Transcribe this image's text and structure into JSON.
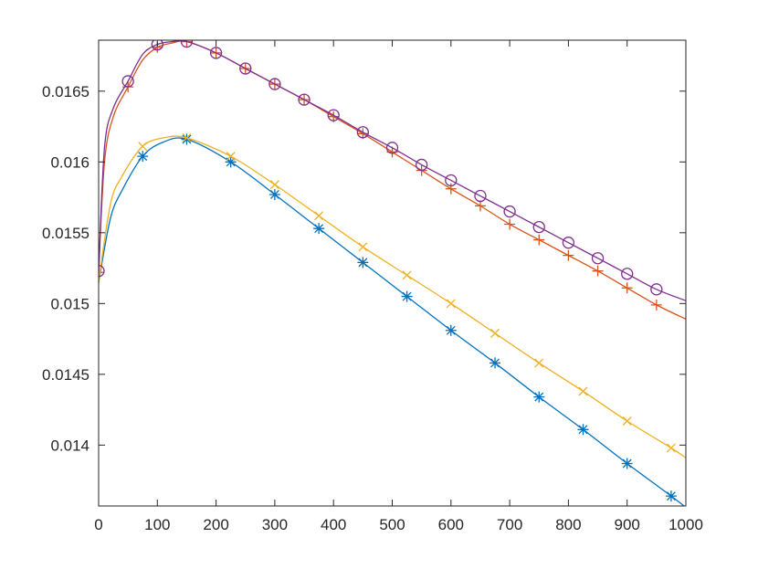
{
  "chart_data": {
    "type": "line",
    "title": "",
    "xlabel": "",
    "ylabel": "",
    "xlim": [
      0,
      1000
    ],
    "ylim": [
      0.01357,
      0.01686
    ],
    "xticks": [
      0,
      100,
      200,
      300,
      400,
      500,
      600,
      700,
      800,
      900,
      1000
    ],
    "xtick_labels": [
      "0",
      "100",
      "200",
      "300",
      "400",
      "500",
      "600",
      "700",
      "800",
      "900",
      "1000"
    ],
    "yticks": [
      0.014,
      0.0145,
      0.015,
      0.0155,
      0.016,
      0.0165
    ],
    "ytick_labels": [
      "0.014",
      "0.0145",
      "0.015",
      "0.0155",
      "0.016",
      "0.0165"
    ],
    "grid": false,
    "legend": "none",
    "series": [
      {
        "color": "#0072BD",
        "marker": "asterisk",
        "x": [
          0,
          20,
          40,
          75,
          110,
          150,
          225,
          300,
          375,
          450,
          525,
          600,
          675,
          750,
          825,
          900,
          975,
          1000
        ],
        "y": [
          0.01515,
          0.0156,
          0.0158,
          0.01604,
          0.01614,
          0.01616,
          0.016,
          0.01577,
          0.01553,
          0.01529,
          0.01505,
          0.01481,
          0.01458,
          0.01434,
          0.01411,
          0.01387,
          0.01364,
          0.01356
        ],
        "marker_x": [
          75,
          150,
          225,
          300,
          375,
          450,
          525,
          600,
          675,
          750,
          825,
          900,
          975
        ],
        "marker_y": [
          0.01604,
          0.01616,
          0.016,
          0.01577,
          0.01553,
          0.01529,
          0.01505,
          0.01481,
          0.01458,
          0.01434,
          0.01411,
          0.01387,
          0.01364
        ]
      },
      {
        "color": "#D95319",
        "marker": "plus",
        "x": [
          0,
          10,
          25,
          50,
          75,
          100,
          125,
          150,
          200,
          250,
          300,
          350,
          400,
          450,
          500,
          550,
          600,
          650,
          700,
          750,
          800,
          850,
          900,
          950,
          1000
        ],
        "y": [
          0.01522,
          0.016,
          0.01632,
          0.01653,
          0.01672,
          0.01681,
          0.01684,
          0.01685,
          0.01677,
          0.01666,
          0.01655,
          0.01644,
          0.01632,
          0.0162,
          0.01607,
          0.01594,
          0.01581,
          0.01569,
          0.01556,
          0.01545,
          0.01534,
          0.01523,
          0.01511,
          0.01499,
          0.01489
        ],
        "marker_x": [
          0,
          50,
          100,
          150,
          200,
          250,
          300,
          350,
          400,
          450,
          500,
          550,
          600,
          650,
          700,
          750,
          800,
          850,
          900,
          950
        ],
        "marker_y": [
          0.01522,
          0.01653,
          0.01681,
          0.01685,
          0.01677,
          0.01666,
          0.01655,
          0.01644,
          0.01632,
          0.0162,
          0.01607,
          0.01594,
          0.01581,
          0.01569,
          0.01556,
          0.01545,
          0.01534,
          0.01523,
          0.01511,
          0.01499
        ]
      },
      {
        "color": "#EDB120",
        "marker": "x",
        "x": [
          0,
          20,
          40,
          75,
          110,
          150,
          225,
          300,
          375,
          450,
          525,
          600,
          675,
          750,
          825,
          900,
          975,
          1000
        ],
        "y": [
          0.01515,
          0.0157,
          0.0159,
          0.01611,
          0.01617,
          0.01617,
          0.01604,
          0.01584,
          0.01562,
          0.0154,
          0.0152,
          0.015,
          0.01479,
          0.01458,
          0.01438,
          0.01417,
          0.01398,
          0.01391
        ],
        "marker_x": [
          75,
          150,
          225,
          300,
          375,
          450,
          525,
          600,
          675,
          750,
          825,
          900,
          975
        ],
        "marker_y": [
          0.01611,
          0.01617,
          0.01604,
          0.01584,
          0.01562,
          0.0154,
          0.0152,
          0.015,
          0.01479,
          0.01458,
          0.01438,
          0.01417,
          0.01398
        ]
      },
      {
        "color": "#7E2F8E",
        "marker": "circle",
        "x": [
          0,
          10,
          25,
          50,
          75,
          100,
          125,
          150,
          200,
          250,
          300,
          350,
          400,
          450,
          500,
          550,
          600,
          650,
          700,
          750,
          800,
          850,
          900,
          950,
          1000
        ],
        "y": [
          0.01523,
          0.0161,
          0.01638,
          0.01657,
          0.01676,
          0.01683,
          0.01685,
          0.01685,
          0.01677,
          0.01666,
          0.01655,
          0.01644,
          0.01633,
          0.01621,
          0.0161,
          0.01598,
          0.01587,
          0.01576,
          0.01565,
          0.01554,
          0.01543,
          0.01532,
          0.01521,
          0.0151,
          0.01502
        ],
        "marker_x": [
          0,
          50,
          100,
          150,
          200,
          250,
          300,
          350,
          400,
          450,
          500,
          550,
          600,
          650,
          700,
          750,
          800,
          850,
          900,
          950
        ],
        "marker_y": [
          0.01523,
          0.01657,
          0.01683,
          0.01685,
          0.01677,
          0.01666,
          0.01655,
          0.01644,
          0.01633,
          0.01621,
          0.0161,
          0.01598,
          0.01587,
          0.01576,
          0.01565,
          0.01554,
          0.01543,
          0.01532,
          0.01521,
          0.0151
        ]
      }
    ]
  }
}
